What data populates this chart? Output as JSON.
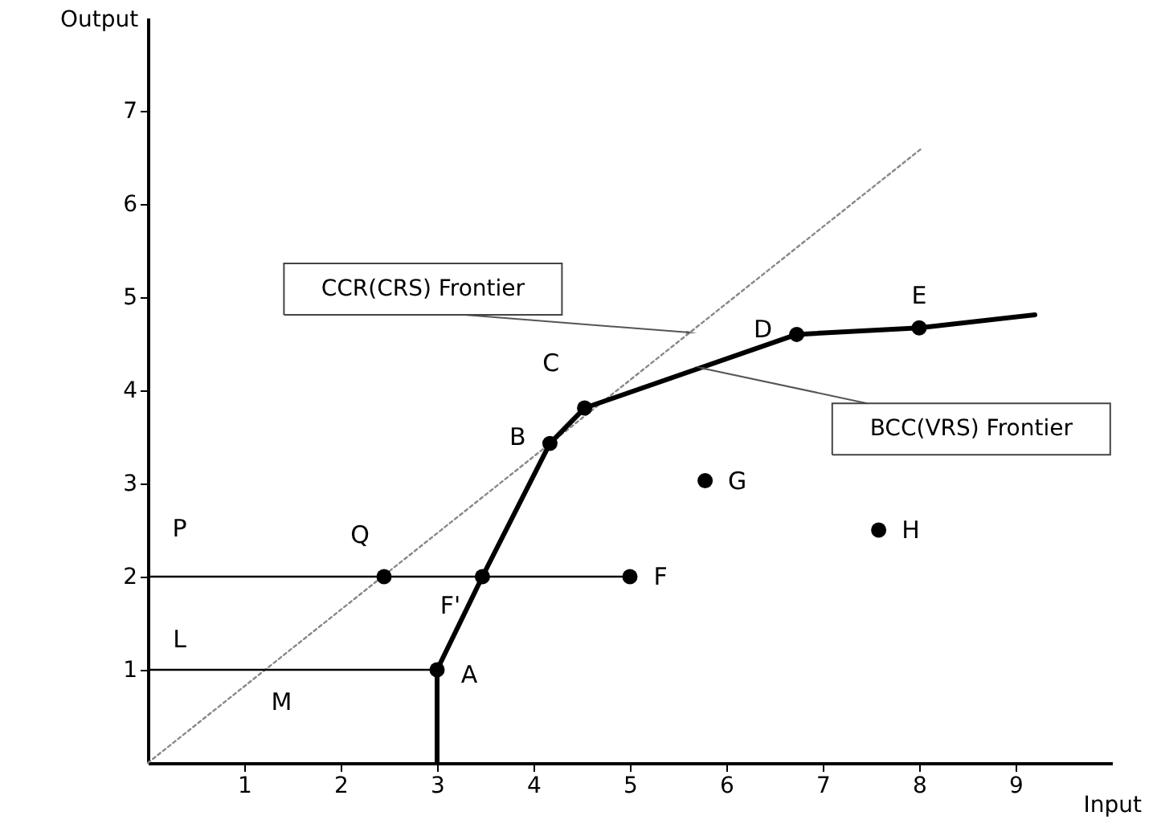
{
  "chart_data": {
    "type": "line",
    "xlabel": "Input",
    "ylabel": "Output",
    "xlim": [
      0,
      10
    ],
    "ylim": [
      0,
      8
    ],
    "xticks": [
      1,
      2,
      3,
      4,
      5,
      6,
      7,
      8,
      9
    ],
    "yticks": [
      1,
      2,
      3,
      4,
      5,
      6,
      7
    ],
    "grid": false,
    "series": [
      {
        "color": "#888888",
        "line_style": "dotted",
        "marker": "none",
        "x": [
          0,
          8.03
        ],
        "values": [
          0,
          6.6
        ]
      },
      {
        "color": "#000000",
        "line_style": "solid",
        "marker": "none",
        "x": [
          3,
          3,
          3.47,
          4.17,
          4.53,
          6.73,
          8.0,
          9.2
        ],
        "values": [
          0,
          1,
          2,
          3.43,
          3.81,
          4.6,
          4.67,
          4.81
        ]
      },
      {
        "color": "#000000",
        "line_style": "solid",
        "marker": "none",
        "x": [
          0,
          5
        ],
        "values": [
          2,
          2
        ]
      },
      {
        "color": "#000000",
        "line_style": "solid",
        "marker": "none",
        "x": [
          0,
          3
        ],
        "values": [
          1,
          1
        ]
      },
      {
        "type": "scatter",
        "color": "#000000",
        "marker": "circle",
        "x": [
          3,
          3.47,
          4.17,
          4.53,
          6.73,
          8.0,
          2.45,
          5.0,
          5.78,
          7.58
        ],
        "values": [
          1,
          2,
          3.43,
          3.81,
          4.6,
          4.67,
          2,
          2,
          3.03,
          2.5
        ]
      }
    ],
    "annotations": [
      {
        "text": "A",
        "x": 3,
        "y": 1
      },
      {
        "text": "F'",
        "x": 3.47,
        "y": 2
      },
      {
        "text": "B",
        "x": 4.17,
        "y": 3.43
      },
      {
        "text": "C",
        "x": 4.53,
        "y": 3.81
      },
      {
        "text": "D",
        "x": 6.73,
        "y": 4.6
      },
      {
        "text": "E",
        "x": 8.0,
        "y": 4.67
      },
      {
        "text": "Q",
        "x": 2.45,
        "y": 2
      },
      {
        "text": "F",
        "x": 5.0,
        "y": 2
      },
      {
        "text": "G",
        "x": 5.78,
        "y": 3.03
      },
      {
        "text": "H",
        "x": 7.58,
        "y": 2.5
      },
      {
        "text": "P",
        "x": 0.33,
        "y": 2
      },
      {
        "text": "L",
        "x": 0.33,
        "y": 1
      },
      {
        "text": "M",
        "x": 1.22,
        "y": 1
      },
      {
        "text": "CCR(CRS) Frontier",
        "x": 5.62,
        "y": 4.62
      },
      {
        "text": "BCC(VRS) Frontier",
        "x": 5.74,
        "y": 4.24
      }
    ]
  }
}
